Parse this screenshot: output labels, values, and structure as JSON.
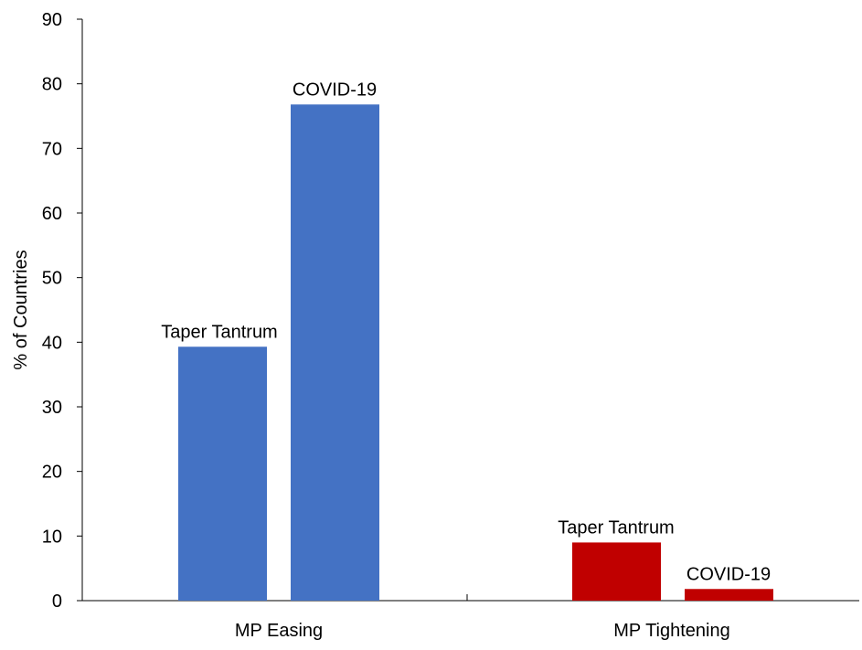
{
  "chart_data": {
    "type": "bar",
    "categories": [
      "MP Easing",
      "MP Tightening"
    ],
    "bars": [
      {
        "category": "MP Easing",
        "label": "Taper Tantrum",
        "value": 39.3,
        "color": "#4472C4"
      },
      {
        "category": "MP Easing",
        "label": "COVID-19",
        "value": 76.8,
        "color": "#4472C4"
      },
      {
        "category": "MP Tightening",
        "label": "Taper Tantrum",
        "value": 9.0,
        "color": "#C00000"
      },
      {
        "category": "MP Tightening",
        "label": "COVID-19",
        "value": 1.8,
        "color": "#C00000"
      }
    ],
    "ylabel": "% of Countries",
    "ylim": [
      0,
      90
    ],
    "yticks": [
      0,
      10,
      20,
      30,
      40,
      50,
      60,
      70,
      80,
      90
    ],
    "grid": false,
    "legend": "none"
  }
}
